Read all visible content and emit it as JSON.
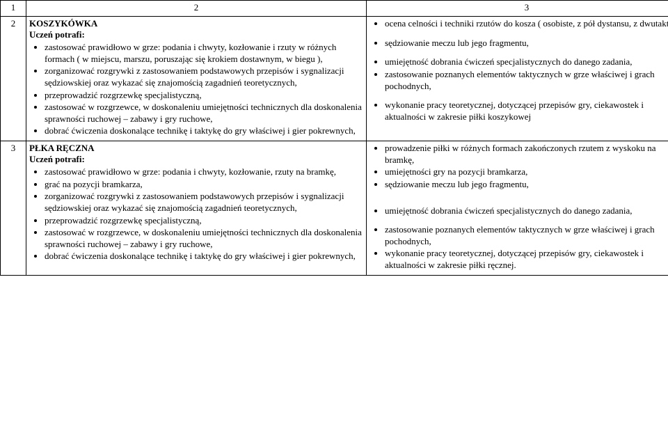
{
  "header": {
    "c1": "1",
    "c2": "2",
    "c3": "3"
  },
  "rows": [
    {
      "num": "2",
      "title": "KOSZYKÓWKA",
      "subtitle": "Uczeń potrafi:",
      "left": [
        "zastosować prawidłowo w grze: podania i chwyty, kozłowanie i rzuty w różnych formach ( w miejscu, marszu, poruszając się krokiem dostawnym, w biegu ),",
        "zorganizować rozgrywki z zastosowaniem podstawowych przepisów i sygnalizacji sędziowskiej oraz wykazać się znajomością zagadnień teoretycznych,",
        "przeprowadzić rozgrzewkę specjalistyczną,",
        "zastosować w rozgrzewce, w doskonaleniu umiejętności technicznych dla doskonalenia sprawności  ruchowej – zabawy i gry ruchowe,",
        "dobrać ćwiczenia doskonalące technikę i taktykę do gry właściwej i gier pokrewnych,"
      ],
      "right": [
        "ocena celności i techniki rzutów do kosza ( osobiste, z pół dystansu, z dwutaktu ),",
        "sędziowanie meczu lub jego fragmentu,",
        "umiejętność dobrania ćwiczeń specjalistycznych do danego zadania,",
        "zastosowanie poznanych elementów taktycznych w grze właściwej i grach pochodnych,",
        "wykonanie pracy teoretycznej, dotyczącej przepisów gry, ciekawostek i aktualności w zakresie piłki koszykowej"
      ],
      "right_gaps": [
        0,
        1,
        1,
        0,
        1
      ]
    },
    {
      "num": "3",
      "title": "PŁKA RĘCZNA",
      "subtitle": "Uczeń potrafi:",
      "left": [
        "zastosować prawidłowo w grze: podania i chwyty, kozłowanie, rzuty na bramkę,",
        "grać na pozycji bramkarza,",
        "zorganizować rozgrywki z zastosowaniem podstawowych przepisów i sygnalizacji sędziowskiej oraz wykazać się znajomością zagadnień teoretycznych,",
        "przeprowadzić rozgrzewkę specjalistyczną,",
        "zastosować w rozgrzewce, w doskonaleniu umiejętności technicznych dla doskonalenia sprawności  ruchowej – zabawy i gry ruchowe,",
        "dobrać ćwiczenia doskonalące technikę i taktykę do gry właściwej i gier pokrewnych,"
      ],
      "right": [
        "prowadzenie piłki w różnych formach zakończonych rzutem z wyskoku na bramkę,",
        "umiejętności gry na pozycji bramkarza,",
        "sędziowanie meczu lub jego fragmentu,",
        "umiejętność dobrania ćwiczeń specjalistycznych do danego zadania,",
        "zastosowanie poznanych elementów taktycznych w grze właściwej i grach pochodnych,",
        "wykonanie pracy teoretycznej, dotyczącej przepisów gry, ciekawostek i aktualności w zakresie piłki ręcznej."
      ],
      "right_gaps": [
        0,
        0,
        0,
        2,
        1,
        0
      ]
    }
  ]
}
